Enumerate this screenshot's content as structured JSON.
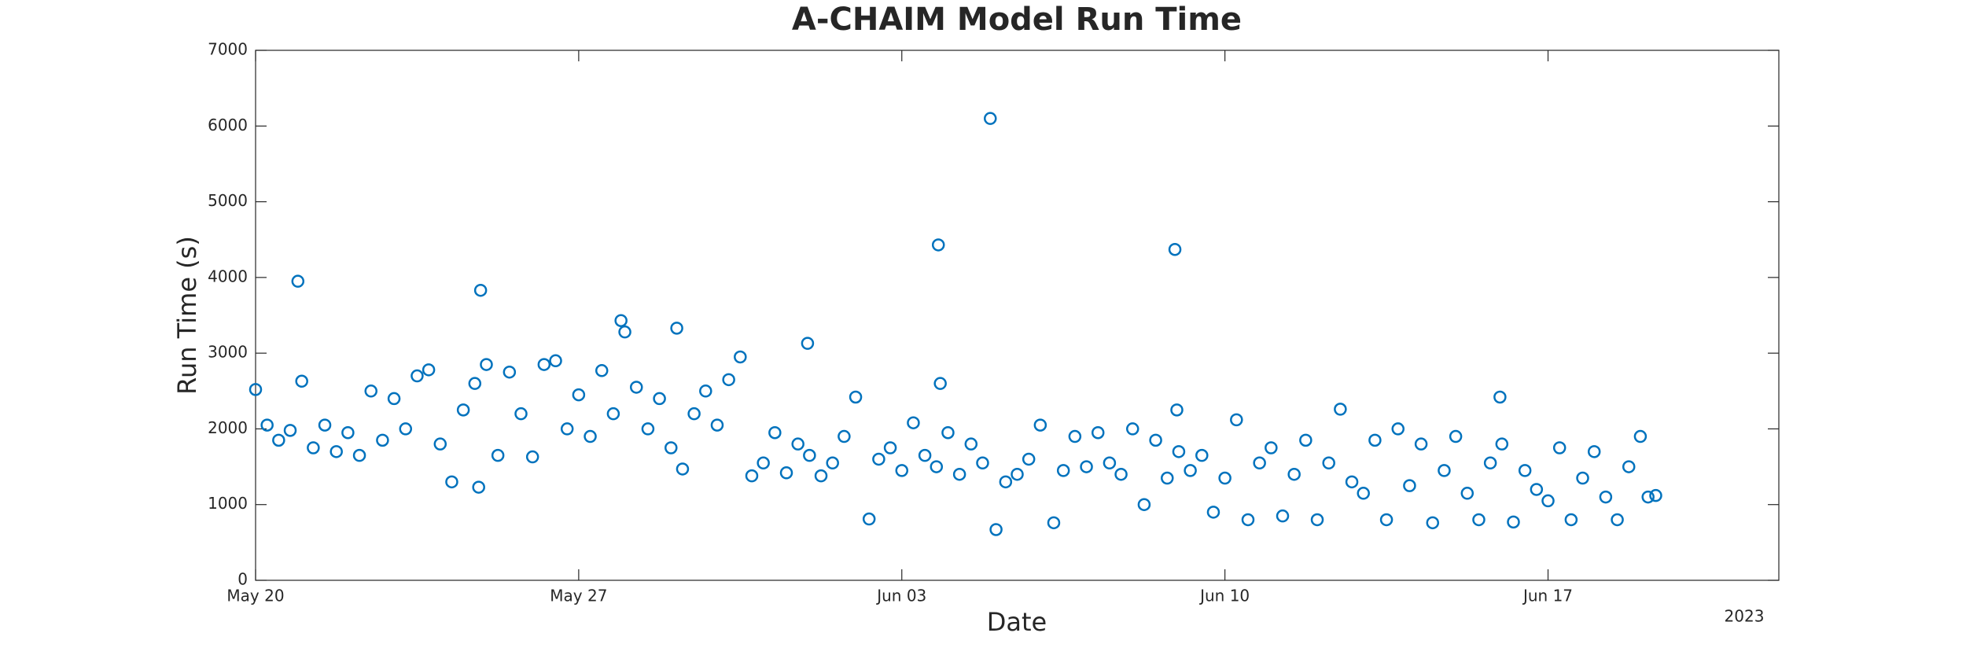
{
  "chart_data": {
    "type": "scatter",
    "title": "A-CHAIM Model Run Time",
    "xlabel": "Date",
    "ylabel": "Run Time (s)",
    "x_year_label": "2023",
    "marker": "open-circle",
    "grid": false,
    "xlim": [
      "2023-05-20",
      "2023-06-22"
    ],
    "xticks": [
      {
        "value": "2023-05-20",
        "label": "May 20"
      },
      {
        "value": "2023-05-27",
        "label": "May 27"
      },
      {
        "value": "2023-06-03",
        "label": "Jun 03"
      },
      {
        "value": "2023-06-10",
        "label": "Jun 10"
      },
      {
        "value": "2023-06-17",
        "label": "Jun 17"
      }
    ],
    "ylim": [
      0,
      7000
    ],
    "yticks": [
      0,
      1000,
      2000,
      3000,
      4000,
      5000,
      6000,
      7000
    ],
    "series": [
      {
        "color": "#0072bd",
        "x": [
          "2023-05-20T00:00",
          "2023-05-20T06:00",
          "2023-05-20T12:00",
          "2023-05-20T18:00",
          "2023-05-20T22:00",
          "2023-05-21T00:00",
          "2023-05-21T06:00",
          "2023-05-21T12:00",
          "2023-05-21T18:00",
          "2023-05-22T00:00",
          "2023-05-22T06:00",
          "2023-05-22T12:00",
          "2023-05-22T18:00",
          "2023-05-23T00:00",
          "2023-05-23T06:00",
          "2023-05-23T12:00",
          "2023-05-23T18:00",
          "2023-05-24T00:00",
          "2023-05-24T06:00",
          "2023-05-24T12:00",
          "2023-05-24T18:00",
          "2023-05-24T20:00",
          "2023-05-24T21:00",
          "2023-05-25T00:00",
          "2023-05-25T06:00",
          "2023-05-25T12:00",
          "2023-05-25T18:00",
          "2023-05-26T00:00",
          "2023-05-26T06:00",
          "2023-05-26T12:00",
          "2023-05-26T18:00",
          "2023-05-27T00:00",
          "2023-05-27T06:00",
          "2023-05-27T12:00",
          "2023-05-27T18:00",
          "2023-05-27T22:00",
          "2023-05-28T00:00",
          "2023-05-28T06:00",
          "2023-05-28T12:00",
          "2023-05-28T18:00",
          "2023-05-29T00:00",
          "2023-05-29T03:00",
          "2023-05-29T06:00",
          "2023-05-29T12:00",
          "2023-05-29T18:00",
          "2023-05-30T00:00",
          "2023-05-30T06:00",
          "2023-05-30T12:00",
          "2023-05-30T18:00",
          "2023-05-31T00:00",
          "2023-05-31T06:00",
          "2023-05-31T12:00",
          "2023-05-31T18:00",
          "2023-05-31T23:00",
          "2023-06-01T00:00",
          "2023-06-01T06:00",
          "2023-06-01T12:00",
          "2023-06-01T18:00",
          "2023-06-02T00:00",
          "2023-06-02T07:00",
          "2023-06-02T12:00",
          "2023-06-02T18:00",
          "2023-06-03T00:00",
          "2023-06-03T06:00",
          "2023-06-03T12:00",
          "2023-06-03T18:00",
          "2023-06-03T19:00",
          "2023-06-03T20:00",
          "2023-06-04T00:00",
          "2023-06-04T06:00",
          "2023-06-04T12:00",
          "2023-06-04T18:00",
          "2023-06-04T22:00",
          "2023-06-05T01:00",
          "2023-06-05T06:00",
          "2023-06-05T12:00",
          "2023-06-05T18:00",
          "2023-06-06T00:00",
          "2023-06-06T07:00",
          "2023-06-06T12:00",
          "2023-06-06T18:00",
          "2023-06-07T00:00",
          "2023-06-07T06:00",
          "2023-06-07T12:00",
          "2023-06-07T18:00",
          "2023-06-08T00:00",
          "2023-06-08T06:00",
          "2023-06-08T12:00",
          "2023-06-08T18:00",
          "2023-06-08T22:00",
          "2023-06-08T23:00",
          "2023-06-09T00:00",
          "2023-06-09T06:00",
          "2023-06-09T12:00",
          "2023-06-09T18:00",
          "2023-06-10T00:00",
          "2023-06-10T06:00",
          "2023-06-10T12:00",
          "2023-06-10T18:00",
          "2023-06-11T00:00",
          "2023-06-11T06:00",
          "2023-06-11T12:00",
          "2023-06-11T18:00",
          "2023-06-12T00:00",
          "2023-06-12T06:00",
          "2023-06-12T12:00",
          "2023-06-12T18:00",
          "2023-06-13T00:00",
          "2023-06-13T06:00",
          "2023-06-13T12:00",
          "2023-06-13T18:00",
          "2023-06-14T00:00",
          "2023-06-14T06:00",
          "2023-06-14T12:00",
          "2023-06-14T18:00",
          "2023-06-15T00:00",
          "2023-06-15T06:00",
          "2023-06-15T12:00",
          "2023-06-15T18:00",
          "2023-06-15T23:00",
          "2023-06-16T00:00",
          "2023-06-16T06:00",
          "2023-06-16T12:00",
          "2023-06-16T18:00",
          "2023-06-17T00:00",
          "2023-06-17T06:00",
          "2023-06-17T12:00",
          "2023-06-17T18:00",
          "2023-06-18T00:00",
          "2023-06-18T06:00",
          "2023-06-18T12:00",
          "2023-06-18T18:00",
          "2023-06-19T00:00",
          "2023-06-19T04:00",
          "2023-06-19T08:00"
        ],
        "values": [
          2520,
          2050,
          1850,
          1980,
          3950,
          2630,
          1750,
          2050,
          1700,
          1950,
          1650,
          2500,
          1850,
          2400,
          2000,
          2700,
          2780,
          1800,
          1300,
          2250,
          2600,
          1230,
          3830,
          2850,
          1650,
          2750,
          2200,
          1630,
          2850,
          2900,
          2000,
          2450,
          1900,
          2770,
          2200,
          3430,
          3280,
          2550,
          2000,
          2400,
          1750,
          3330,
          1470,
          2200,
          2500,
          2050,
          2650,
          2950,
          1380,
          1550,
          1950,
          1420,
          1800,
          3130,
          1650,
          1380,
          1550,
          1900,
          2420,
          810,
          1600,
          1750,
          1450,
          2080,
          1650,
          1500,
          4430,
          2600,
          1950,
          1400,
          1800,
          1550,
          6100,
          670,
          1300,
          1400,
          1600,
          2050,
          760,
          1450,
          1900,
          1500,
          1950,
          1550,
          1400,
          2000,
          1000,
          1850,
          1350,
          4370,
          2250,
          1700,
          1450,
          1650,
          900,
          1350,
          2120,
          800,
          1550,
          1750,
          850,
          1400,
          1850,
          800,
          1550,
          2260,
          1300,
          1150,
          1850,
          800,
          2000,
          1250,
          1800,
          760,
          1450,
          1900,
          1150,
          800,
          1550,
          2420,
          1800,
          770,
          1450,
          1200,
          1050,
          1750,
          800,
          1350,
          1700,
          1100,
          800,
          1500,
          1900,
          1100,
          1120
        ]
      }
    ]
  }
}
